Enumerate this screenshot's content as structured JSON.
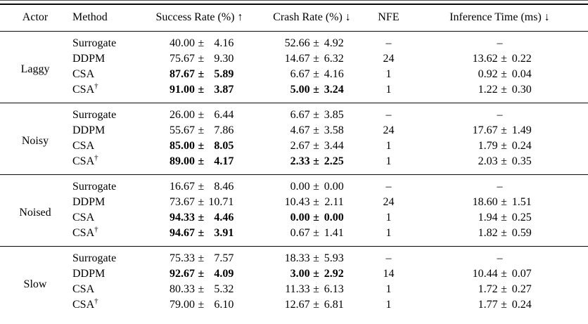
{
  "page": {
    "background": "#ffffff",
    "text_color": "#000000",
    "rule_color": "#0a0a0a"
  },
  "table": {
    "plus_minus": "±",
    "dash": "–",
    "dagger": "†",
    "columns": [
      {
        "label": "Actor"
      },
      {
        "label": "Method"
      },
      {
        "label": "Success Rate (%) ↑"
      },
      {
        "label": "Crash Rate (%) ↓"
      },
      {
        "label": "NFE"
      },
      {
        "label": "Inference Time (ms) ↓"
      }
    ],
    "groups": [
      {
        "actor": "Laggy",
        "rows": [
          {
            "method": "Surrogate",
            "dagger": false,
            "success": {
              "mean": "40.00",
              "std": "4.16",
              "bold": false
            },
            "crash": {
              "mean": "52.66",
              "std": "4.92",
              "bold": false
            },
            "nfe": null,
            "inference": null
          },
          {
            "method": "DDPM",
            "dagger": false,
            "success": {
              "mean": "75.67",
              "std": "9.30",
              "bold": false
            },
            "crash": {
              "mean": "14.67",
              "std": "6.32",
              "bold": false
            },
            "nfe": "24",
            "inference": {
              "mean": "13.62",
              "std": "0.22",
              "bold": false
            }
          },
          {
            "method": "CSA",
            "dagger": false,
            "success": {
              "mean": "87.67",
              "std": "5.89",
              "bold": true
            },
            "crash": {
              "mean": "6.67",
              "std": "4.16",
              "bold": false
            },
            "nfe": "1",
            "inference": {
              "mean": "0.92",
              "std": "0.04",
              "bold": false
            }
          },
          {
            "method": "CSA",
            "dagger": true,
            "success": {
              "mean": "91.00",
              "std": "3.87",
              "bold": true
            },
            "crash": {
              "mean": "5.00",
              "std": "3.24",
              "bold": true
            },
            "nfe": "1",
            "inference": {
              "mean": "1.22",
              "std": "0.30",
              "bold": false
            }
          }
        ]
      },
      {
        "actor": "Noisy",
        "rows": [
          {
            "method": "Surrogate",
            "dagger": false,
            "success": {
              "mean": "26.00",
              "std": "6.44",
              "bold": false
            },
            "crash": {
              "mean": "6.67",
              "std": "3.85",
              "bold": false
            },
            "nfe": null,
            "inference": null
          },
          {
            "method": "DDPM",
            "dagger": false,
            "success": {
              "mean": "55.67",
              "std": "7.86",
              "bold": false
            },
            "crash": {
              "mean": "4.67",
              "std": "3.58",
              "bold": false
            },
            "nfe": "24",
            "inference": {
              "mean": "17.67",
              "std": "1.49",
              "bold": false
            }
          },
          {
            "method": "CSA",
            "dagger": false,
            "success": {
              "mean": "85.00",
              "std": "8.05",
              "bold": true
            },
            "crash": {
              "mean": "2.67",
              "std": "3.44",
              "bold": false
            },
            "nfe": "1",
            "inference": {
              "mean": "1.79",
              "std": "0.24",
              "bold": false
            }
          },
          {
            "method": "CSA",
            "dagger": true,
            "success": {
              "mean": "89.00",
              "std": "4.17",
              "bold": true
            },
            "crash": {
              "mean": "2.33",
              "std": "2.25",
              "bold": true
            },
            "nfe": "1",
            "inference": {
              "mean": "2.03",
              "std": "0.35",
              "bold": false
            }
          }
        ]
      },
      {
        "actor": "Noised",
        "rows": [
          {
            "method": "Surrogate",
            "dagger": false,
            "success": {
              "mean": "16.67",
              "std": "8.46",
              "bold": false
            },
            "crash": {
              "mean": "0.00",
              "std": "0.00",
              "bold": false
            },
            "nfe": null,
            "inference": null
          },
          {
            "method": "DDPM",
            "dagger": false,
            "success": {
              "mean": "73.67",
              "std": "10.71",
              "bold": false
            },
            "crash": {
              "mean": "10.43",
              "std": "2.11",
              "bold": false
            },
            "nfe": "24",
            "inference": {
              "mean": "18.60",
              "std": "1.51",
              "bold": false
            }
          },
          {
            "method": "CSA",
            "dagger": false,
            "success": {
              "mean": "94.33",
              "std": "4.46",
              "bold": true
            },
            "crash": {
              "mean": "0.00",
              "std": "0.00",
              "bold": true
            },
            "nfe": "1",
            "inference": {
              "mean": "1.94",
              "std": "0.25",
              "bold": false
            }
          },
          {
            "method": "CSA",
            "dagger": true,
            "success": {
              "mean": "94.67",
              "std": "3.91",
              "bold": true
            },
            "crash": {
              "mean": "0.67",
              "std": "1.41",
              "bold": false
            },
            "nfe": "1",
            "inference": {
              "mean": "1.82",
              "std": "0.59",
              "bold": false
            }
          }
        ]
      },
      {
        "actor": "Slow",
        "rows": [
          {
            "method": "Surrogate",
            "dagger": false,
            "success": {
              "mean": "75.33",
              "std": "7.57",
              "bold": false
            },
            "crash": {
              "mean": "18.33",
              "std": "5.93",
              "bold": false
            },
            "nfe": null,
            "inference": null
          },
          {
            "method": "DDPM",
            "dagger": false,
            "success": {
              "mean": "92.67",
              "std": "4.09",
              "bold": true
            },
            "crash": {
              "mean": "3.00",
              "std": "2.92",
              "bold": true
            },
            "nfe": "14",
            "inference": {
              "mean": "10.44",
              "std": "0.07",
              "bold": false
            }
          },
          {
            "method": "CSA",
            "dagger": false,
            "success": {
              "mean": "80.33",
              "std": "5.32",
              "bold": false
            },
            "crash": {
              "mean": "11.33",
              "std": "6.13",
              "bold": false
            },
            "nfe": "1",
            "inference": {
              "mean": "1.72",
              "std": "0.27",
              "bold": false
            }
          },
          {
            "method": "CSA",
            "dagger": true,
            "success": {
              "mean": "79.00",
              "std": "6.10",
              "bold": false
            },
            "crash": {
              "mean": "12.67",
              "std": "6.81",
              "bold": false
            },
            "nfe": "1",
            "inference": {
              "mean": "1.77",
              "std": "0.24",
              "bold": false
            }
          }
        ]
      }
    ]
  }
}
